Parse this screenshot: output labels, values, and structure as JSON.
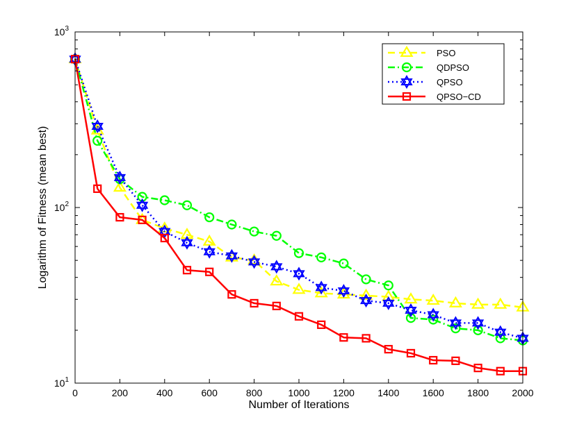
{
  "chart_data": {
    "type": "line",
    "title": "",
    "xlabel": "Number of Iterations",
    "ylabel": "Logarithm of Fitness (mean best)",
    "xscale": "linear",
    "yscale": "log",
    "xlim": [
      0,
      2000
    ],
    "ylim": [
      10,
      1000
    ],
    "xticks": [
      0,
      200,
      400,
      600,
      800,
      1000,
      1200,
      1400,
      1600,
      1800,
      2000
    ],
    "yticks": [
      {
        "value": 10,
        "base": "10",
        "exp": "1"
      },
      {
        "value": 100,
        "base": "10",
        "exp": "2"
      },
      {
        "value": 1000,
        "base": "10",
        "exp": "3"
      }
    ],
    "grid": false,
    "legend_position": "top-right",
    "x": [
      0,
      100,
      200,
      300,
      400,
      500,
      600,
      700,
      800,
      900,
      1000,
      1100,
      1200,
      1300,
      1400,
      1500,
      1600,
      1700,
      1800,
      1900,
      2000
    ],
    "series": [
      {
        "name": "PSO",
        "color": "#ffff00",
        "line_style": "dashed",
        "marker": "triangle",
        "values": [
          700,
          275,
          130,
          85,
          76,
          70,
          64,
          52,
          50,
          38,
          34,
          32.5,
          32,
          31.5,
          31,
          30,
          29.5,
          28.5,
          28,
          28,
          27
        ]
      },
      {
        "name": "QDPSO",
        "color": "#00ff00",
        "line_style": "dashdot",
        "marker": "circle",
        "values": [
          700,
          240,
          145,
          115,
          110,
          103,
          88,
          80,
          73,
          69,
          55,
          52,
          48,
          39,
          36,
          23.5,
          23,
          20.5,
          20,
          18,
          17.5
        ]
      },
      {
        "name": "QPSO",
        "color": "#0000ff",
        "line_style": "dotted",
        "marker": "hexagram",
        "values": [
          700,
          290,
          148,
          103,
          73,
          63,
          56,
          53,
          49,
          46,
          42,
          35,
          33.5,
          29.5,
          28.5,
          26,
          24.5,
          22,
          22,
          19.5,
          18
        ]
      },
      {
        "name": "QPSO−CD",
        "color": "#ff0000",
        "line_style": "solid",
        "marker": "square",
        "values": [
          700,
          128,
          88,
          85,
          67,
          44,
          43,
          32,
          28.5,
          27.5,
          24,
          21.5,
          18.2,
          18,
          15.6,
          14.8,
          13.5,
          13.4,
          12.2,
          11.7,
          11.7
        ]
      }
    ]
  }
}
